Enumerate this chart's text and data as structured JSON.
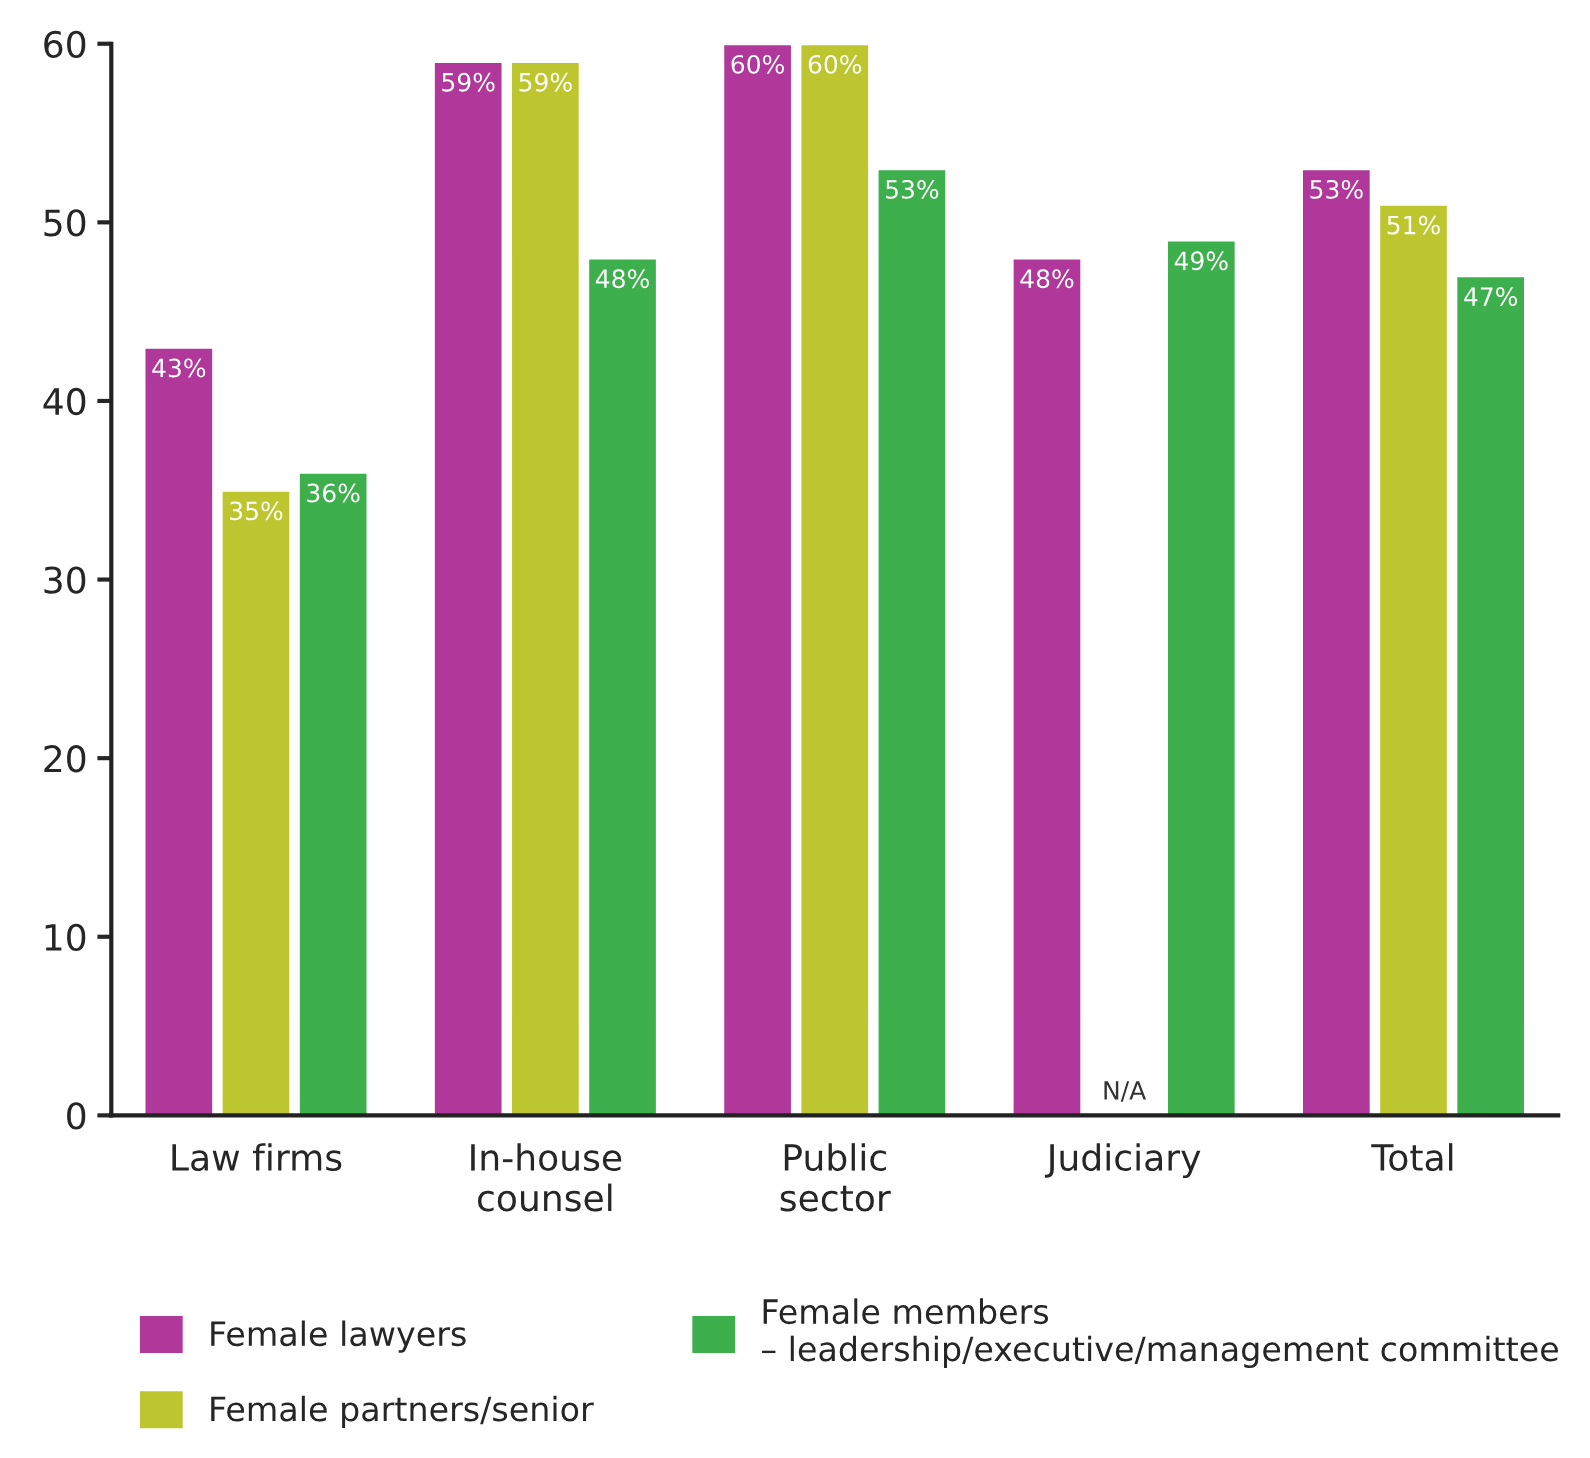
{
  "chart_data": {
    "type": "bar",
    "categories": [
      "Law firms",
      "In-house\ncounsel",
      "Public\nsector",
      "Judiciary",
      "Total"
    ],
    "series": [
      {
        "name": "Female lawyers",
        "color": "#b0389a",
        "values": [
          43,
          59,
          60,
          48,
          53
        ],
        "value_labels": [
          "43%",
          "59%",
          "60%",
          "48%",
          "53%"
        ]
      },
      {
        "name": "Female partners/senior",
        "color": "#bec62f",
        "values": [
          35,
          59,
          60,
          null,
          51
        ],
        "value_labels": [
          "35%",
          "59%",
          "60%",
          "N/A",
          "51%"
        ]
      },
      {
        "name": "Female members\n– leadership/executive/management committee",
        "color": "#3daf4c",
        "values": [
          36,
          48,
          53,
          49,
          47
        ],
        "value_labels": [
          "36%",
          "48%",
          "53%",
          "49%",
          "47%"
        ]
      }
    ],
    "ylim": [
      0,
      60
    ],
    "yticks": [
      0,
      10,
      20,
      30,
      40,
      50,
      60
    ],
    "grid": false,
    "legend": "bottom"
  }
}
